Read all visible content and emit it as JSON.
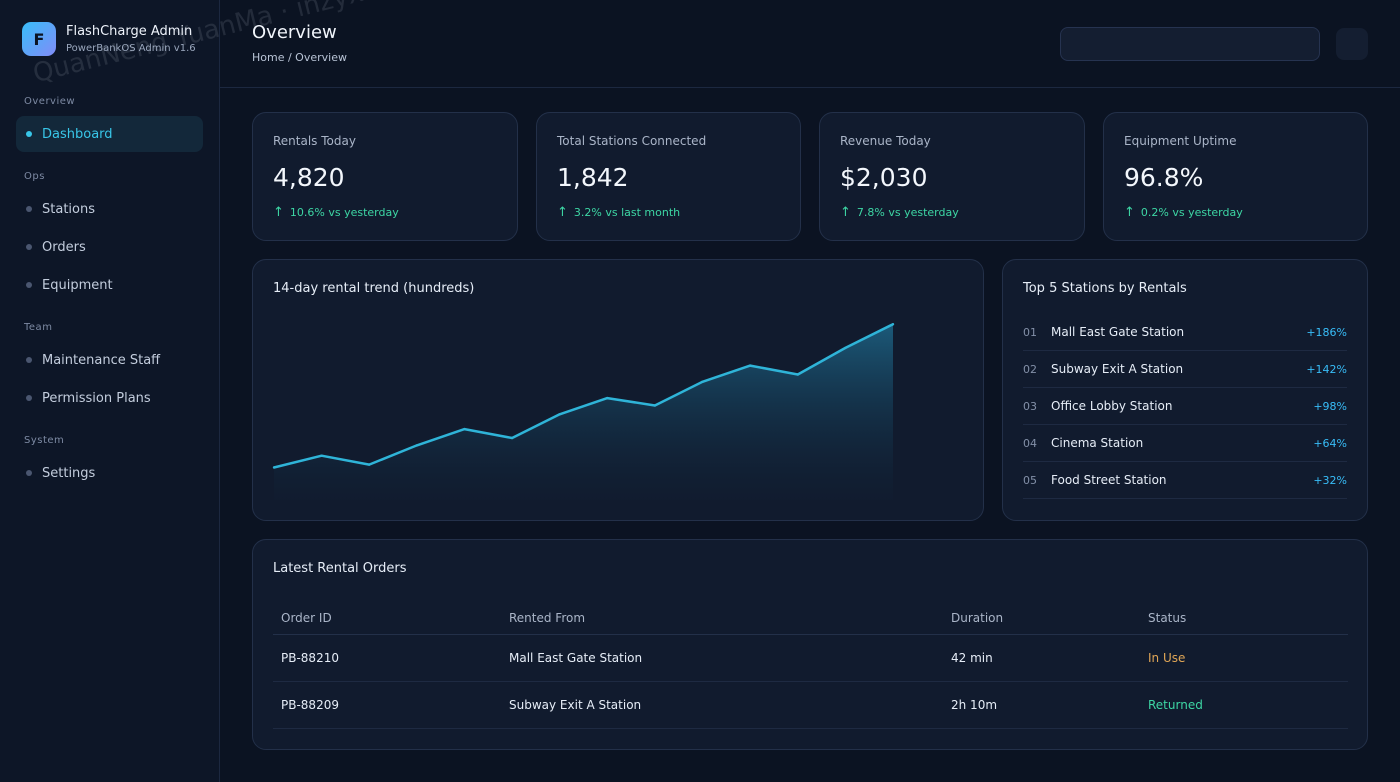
{
  "brand": {
    "logo_letter": "F",
    "title": "FlashCharge Admin",
    "subtitle": "PowerBankOS Admin v1.6"
  },
  "sidebar": {
    "sections": [
      {
        "label": "Overview",
        "items": [
          {
            "label": "Dashboard",
            "active": true
          }
        ]
      },
      {
        "label": "Ops",
        "items": [
          {
            "label": "Stations"
          },
          {
            "label": "Orders"
          },
          {
            "label": "Equipment"
          }
        ]
      },
      {
        "label": "Team",
        "items": [
          {
            "label": "Maintenance Staff"
          },
          {
            "label": "Permission Plans"
          }
        ]
      },
      {
        "label": "System",
        "items": [
          {
            "label": "Settings"
          }
        ]
      }
    ]
  },
  "header": {
    "title": "Overview",
    "breadcrumb": "Home / Overview",
    "search_placeholder": ""
  },
  "stats": [
    {
      "label": "Rentals Today",
      "value": "4,820",
      "change": "10.6% vs yesterday"
    },
    {
      "label": "Total Stations Connected",
      "value": "1,842",
      "change": "3.2% vs last month"
    },
    {
      "label": "Revenue Today",
      "value": "$2,030",
      "change": "7.8% vs yesterday"
    },
    {
      "label": "Equipment Uptime",
      "value": "96.8%",
      "change": "0.2% vs yesterday"
    }
  ],
  "trend": {
    "title": "14-day rental trend (hundreds)"
  },
  "chart_data": {
    "type": "area",
    "title": "14-day rental trend (hundreds)",
    "x": [
      1,
      2,
      3,
      4,
      5,
      6,
      7,
      8,
      9,
      10,
      11,
      12,
      13,
      14
    ],
    "values": [
      22,
      30,
      24,
      37,
      48,
      42,
      58,
      69,
      64,
      80,
      91,
      85,
      103,
      119
    ],
    "ylim": [
      0,
      130
    ],
    "grid": false,
    "colors": {
      "line": "#2fb4d8",
      "fill": "#1a5a7a"
    }
  },
  "top_stations": {
    "title": "Top 5 Stations by Rentals",
    "rows": [
      {
        "rank": "01",
        "name": "Mall East Gate Station",
        "growth": "+186%"
      },
      {
        "rank": "02",
        "name": "Subway Exit A Station",
        "growth": "+142%"
      },
      {
        "rank": "03",
        "name": "Office Lobby Station",
        "growth": "+98%"
      },
      {
        "rank": "04",
        "name": "Cinema Station",
        "growth": "+64%"
      },
      {
        "rank": "05",
        "name": "Food Street Station",
        "growth": "+32%"
      }
    ]
  },
  "orders": {
    "title": "Latest Rental Orders",
    "columns": [
      "Order ID",
      "Rented From",
      "Duration",
      "Status"
    ],
    "rows": [
      {
        "id": "PB-88210",
        "from": "Mall East Gate Station",
        "duration": "42 min",
        "status": "In Use"
      },
      {
        "id": "PB-88209",
        "from": "Subway Exit A Station",
        "duration": "2h 10m",
        "status": "Returned"
      }
    ]
  },
  "watermark": "QuanNeng YuanMa · inzyxuashop.com",
  "colors": {
    "accent": "#38c6e8",
    "positive": "#3dd6a4",
    "warning": "#e0a656",
    "background": "#0b1322"
  }
}
